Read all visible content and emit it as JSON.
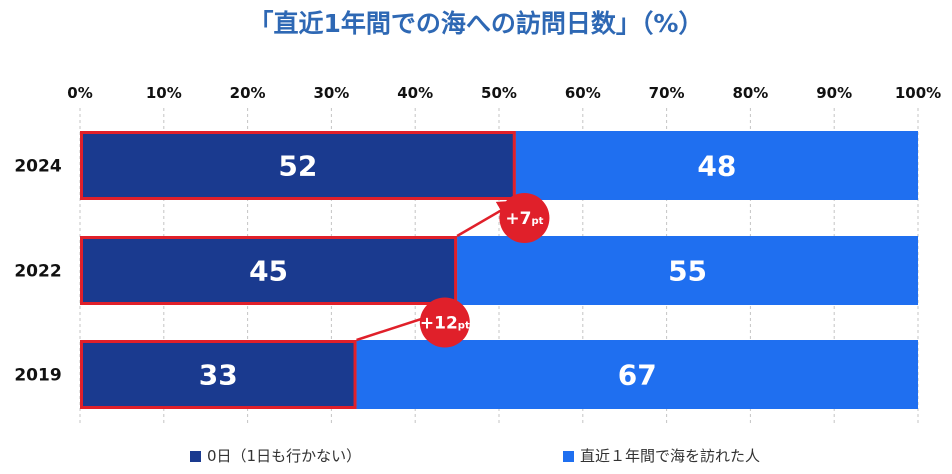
{
  "chart_data": {
    "type": "bar",
    "orientation": "horizontal-stacked-100",
    "title": "「直近1年間での海への訪問日数」（%）",
    "categories": [
      "2024",
      "2022",
      "2019"
    ],
    "series": [
      {
        "name": "0日（1日も行かない）",
        "values": [
          52,
          45,
          33
        ],
        "color": "#1a3a8f"
      },
      {
        "name": "直近１年間で海を訪れた人",
        "values": [
          48,
          55,
          67
        ],
        "color": "#1f6ff0"
      }
    ],
    "xlim": [
      0,
      100
    ],
    "x_ticks": [
      "0%",
      "10%",
      "20%",
      "30%",
      "40%",
      "50%",
      "60%",
      "70%",
      "80%",
      "90%",
      "100%"
    ],
    "grid": "vertical dashed",
    "legend_position": "bottom",
    "highlight_color": "#e0202a",
    "annotations": [
      {
        "label": "+7",
        "unit": "pt",
        "from": "2022",
        "to": "2024"
      },
      {
        "label": "+12",
        "unit": "pt",
        "from": "2019",
        "to": "2022"
      }
    ]
  }
}
